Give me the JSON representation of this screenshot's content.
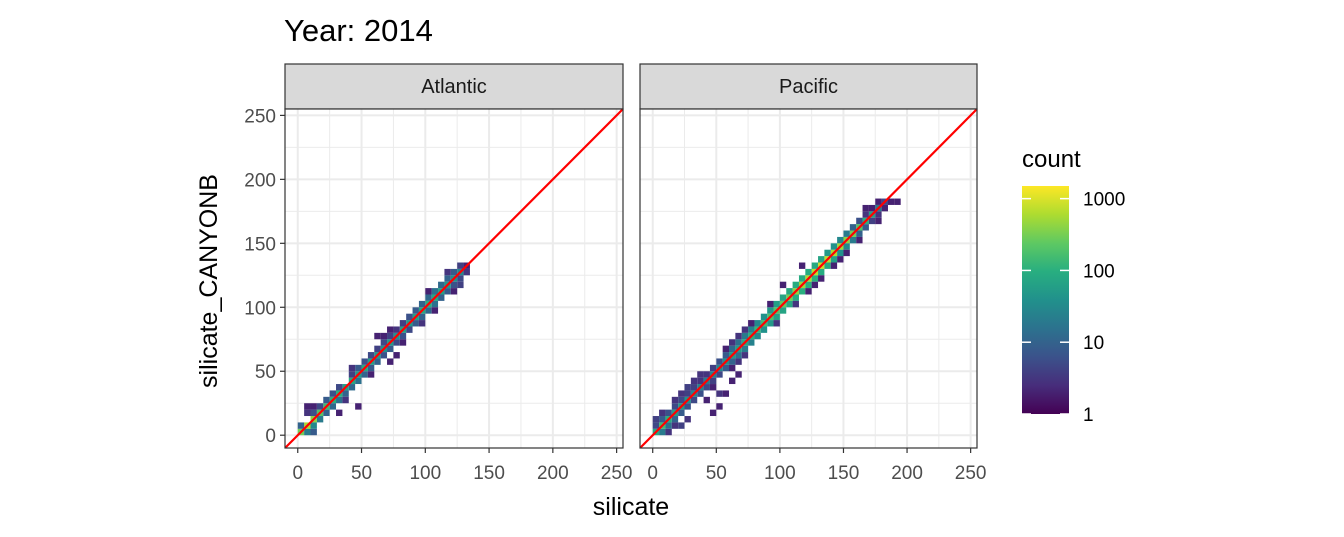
{
  "chart_data": {
    "type": "heatmap",
    "title": "Year: 2014",
    "xlabel": "silicate",
    "ylabel": "silicate_CANYONB",
    "xlim": [
      -10,
      255
    ],
    "ylim": [
      -10,
      255
    ],
    "x_ticks": [
      "0",
      "50",
      "100",
      "150",
      "200",
      "250"
    ],
    "y_ticks": [
      "0",
      "50",
      "100",
      "150",
      "200",
      "250"
    ],
    "tick_values": [
      0,
      50,
      100,
      150,
      200,
      250
    ],
    "grid": true,
    "bin_width": 5,
    "reference_line": {
      "type": "identity",
      "slope": 1,
      "intercept": 0,
      "color": "#ff0000"
    },
    "legend": {
      "title": "count",
      "position": "right",
      "scale": "log10",
      "labels": [
        "1000",
        "100",
        "10",
        "1"
      ],
      "values": [
        1000,
        100,
        10,
        1
      ],
      "max": 1500,
      "colors": [
        "#440154",
        "#472d7b",
        "#3b528b",
        "#2c728e",
        "#21918c",
        "#28ae80",
        "#5ec962",
        "#addc30",
        "#fde725"
      ]
    },
    "panels": [
      {
        "name": "Atlantic",
        "x_range": [
          0,
          130
        ],
        "bins": [
          [
            0,
            0,
            300
          ],
          [
            5,
            5,
            600
          ],
          [
            10,
            10,
            400
          ],
          [
            15,
            15,
            200
          ],
          [
            20,
            20,
            150
          ],
          [
            25,
            25,
            100
          ],
          [
            30,
            30,
            100
          ],
          [
            35,
            35,
            60
          ],
          [
            40,
            40,
            80
          ],
          [
            45,
            45,
            50
          ],
          [
            50,
            50,
            80
          ],
          [
            55,
            55,
            60
          ],
          [
            60,
            60,
            50
          ],
          [
            65,
            65,
            40
          ],
          [
            70,
            70,
            50
          ],
          [
            75,
            75,
            40
          ],
          [
            80,
            80,
            60
          ],
          [
            85,
            85,
            50
          ],
          [
            90,
            90,
            60
          ],
          [
            95,
            95,
            80
          ],
          [
            100,
            100,
            100
          ],
          [
            105,
            105,
            80
          ],
          [
            110,
            110,
            60
          ],
          [
            115,
            115,
            50
          ],
          [
            120,
            120,
            40
          ],
          [
            125,
            125,
            30
          ],
          [
            5,
            0,
            20
          ],
          [
            10,
            0,
            8
          ],
          [
            0,
            5,
            10
          ],
          [
            5,
            15,
            3
          ],
          [
            10,
            5,
            30
          ],
          [
            15,
            10,
            20
          ],
          [
            10,
            15,
            6
          ],
          [
            15,
            20,
            5
          ],
          [
            20,
            15,
            10
          ],
          [
            20,
            25,
            8
          ],
          [
            25,
            20,
            12
          ],
          [
            25,
            30,
            6
          ],
          [
            30,
            25,
            15
          ],
          [
            30,
            35,
            5
          ],
          [
            35,
            30,
            10
          ],
          [
            35,
            25,
            3
          ],
          [
            40,
            35,
            12
          ],
          [
            40,
            45,
            4
          ],
          [
            45,
            40,
            15
          ],
          [
            50,
            45,
            10
          ],
          [
            45,
            50,
            8
          ],
          [
            50,
            55,
            6
          ],
          [
            55,
            50,
            8
          ],
          [
            55,
            60,
            5
          ],
          [
            60,
            55,
            10
          ],
          [
            60,
            65,
            4
          ],
          [
            65,
            60,
            6
          ],
          [
            65,
            70,
            5
          ],
          [
            70,
            65,
            8
          ],
          [
            70,
            75,
            4
          ],
          [
            75,
            70,
            5
          ],
          [
            75,
            80,
            3
          ],
          [
            80,
            75,
            6
          ],
          [
            85,
            80,
            5
          ],
          [
            80,
            85,
            4
          ],
          [
            90,
            85,
            8
          ],
          [
            85,
            90,
            6
          ],
          [
            95,
            90,
            10
          ],
          [
            90,
            95,
            8
          ],
          [
            100,
            95,
            12
          ],
          [
            95,
            100,
            10
          ],
          [
            105,
            100,
            15
          ],
          [
            100,
            105,
            12
          ],
          [
            110,
            105,
            10
          ],
          [
            105,
            110,
            15
          ],
          [
            115,
            110,
            8
          ],
          [
            110,
            115,
            12
          ],
          [
            120,
            115,
            6
          ],
          [
            115,
            120,
            10
          ],
          [
            125,
            120,
            5
          ],
          [
            120,
            125,
            8
          ],
          [
            130,
            125,
            3
          ],
          [
            125,
            130,
            4
          ],
          [
            130,
            130,
            2
          ],
          [
            115,
            125,
            3
          ],
          [
            125,
            115,
            4
          ],
          [
            5,
            20,
            2
          ],
          [
            10,
            20,
            2
          ],
          [
            30,
            15,
            2
          ],
          [
            45,
            20,
            2
          ],
          [
            40,
            50,
            3
          ],
          [
            55,
            45,
            2
          ],
          [
            65,
            75,
            2
          ],
          [
            70,
            55,
            2
          ],
          [
            75,
            60,
            2
          ],
          [
            80,
            70,
            2
          ],
          [
            70,
            80,
            2
          ],
          [
            60,
            75,
            2
          ],
          [
            95,
            85,
            3
          ],
          [
            100,
            110,
            2
          ],
          [
            105,
            95,
            2
          ],
          [
            120,
            110,
            2
          ]
        ]
      },
      {
        "name": "Pacific",
        "x_range": [
          0,
          190
        ],
        "bins": [
          [
            0,
            0,
            80
          ],
          [
            5,
            5,
            150
          ],
          [
            10,
            10,
            100
          ],
          [
            15,
            15,
            60
          ],
          [
            20,
            20,
            50
          ],
          [
            25,
            25,
            40
          ],
          [
            30,
            30,
            30
          ],
          [
            35,
            35,
            25
          ],
          [
            40,
            40,
            20
          ],
          [
            45,
            45,
            25
          ],
          [
            50,
            50,
            30
          ],
          [
            55,
            55,
            40
          ],
          [
            60,
            60,
            50
          ],
          [
            65,
            65,
            60
          ],
          [
            70,
            70,
            80
          ],
          [
            75,
            75,
            100
          ],
          [
            80,
            80,
            120
          ],
          [
            85,
            85,
            150
          ],
          [
            90,
            90,
            180
          ],
          [
            95,
            95,
            200
          ],
          [
            100,
            100,
            250
          ],
          [
            105,
            105,
            300
          ],
          [
            110,
            110,
            400
          ],
          [
            115,
            115,
            500
          ],
          [
            120,
            120,
            600
          ],
          [
            125,
            125,
            700
          ],
          [
            130,
            130,
            800
          ],
          [
            135,
            135,
            700
          ],
          [
            140,
            140,
            600
          ],
          [
            145,
            145,
            500
          ],
          [
            150,
            150,
            400
          ],
          [
            155,
            155,
            300
          ],
          [
            160,
            160,
            200
          ],
          [
            165,
            165,
            100
          ],
          [
            170,
            170,
            60
          ],
          [
            175,
            175,
            20
          ],
          [
            180,
            180,
            5
          ],
          [
            5,
            0,
            20
          ],
          [
            0,
            5,
            5
          ],
          [
            10,
            5,
            15
          ],
          [
            5,
            10,
            8
          ],
          [
            15,
            10,
            10
          ],
          [
            10,
            15,
            6
          ],
          [
            20,
            15,
            8
          ],
          [
            15,
            20,
            5
          ],
          [
            25,
            20,
            6
          ],
          [
            20,
            25,
            5
          ],
          [
            30,
            25,
            5
          ],
          [
            25,
            30,
            4
          ],
          [
            35,
            30,
            6
          ],
          [
            30,
            35,
            4
          ],
          [
            40,
            35,
            5
          ],
          [
            35,
            40,
            3
          ],
          [
            45,
            40,
            4
          ],
          [
            40,
            45,
            3
          ],
          [
            50,
            45,
            5
          ],
          [
            45,
            50,
            4
          ],
          [
            55,
            50,
            8
          ],
          [
            50,
            55,
            6
          ],
          [
            60,
            55,
            10
          ],
          [
            55,
            60,
            8
          ],
          [
            65,
            60,
            15
          ],
          [
            60,
            65,
            12
          ],
          [
            70,
            65,
            20
          ],
          [
            65,
            70,
            15
          ],
          [
            75,
            70,
            25
          ],
          [
            70,
            75,
            20
          ],
          [
            80,
            75,
            30
          ],
          [
            75,
            80,
            25
          ],
          [
            85,
            80,
            40
          ],
          [
            80,
            85,
            30
          ],
          [
            90,
            85,
            50
          ],
          [
            85,
            90,
            40
          ],
          [
            95,
            90,
            60
          ],
          [
            90,
            95,
            50
          ],
          [
            100,
            95,
            70
          ],
          [
            95,
            100,
            60
          ],
          [
            105,
            100,
            80
          ],
          [
            100,
            105,
            70
          ],
          [
            110,
            105,
            90
          ],
          [
            105,
            110,
            80
          ],
          [
            115,
            110,
            100
          ],
          [
            110,
            115,
            90
          ],
          [
            120,
            115,
            100
          ],
          [
            115,
            120,
            90
          ],
          [
            125,
            120,
            100
          ],
          [
            120,
            125,
            90
          ],
          [
            130,
            125,
            90
          ],
          [
            125,
            130,
            80
          ],
          [
            135,
            130,
            80
          ],
          [
            130,
            135,
            70
          ],
          [
            140,
            135,
            60
          ],
          [
            135,
            140,
            50
          ],
          [
            145,
            140,
            40
          ],
          [
            140,
            145,
            40
          ],
          [
            150,
            145,
            30
          ],
          [
            145,
            150,
            30
          ],
          [
            155,
            150,
            20
          ],
          [
            150,
            155,
            20
          ],
          [
            160,
            155,
            10
          ],
          [
            155,
            160,
            10
          ],
          [
            165,
            160,
            8
          ],
          [
            160,
            165,
            6
          ],
          [
            170,
            165,
            4
          ],
          [
            165,
            170,
            3
          ],
          [
            175,
            170,
            3
          ],
          [
            170,
            175,
            2
          ],
          [
            0,
            10,
            4
          ],
          [
            5,
            15,
            3
          ],
          [
            15,
            5,
            3
          ],
          [
            10,
            0,
            3
          ],
          [
            20,
            5,
            4
          ],
          [
            25,
            10,
            3
          ],
          [
            15,
            25,
            3
          ],
          [
            20,
            30,
            3
          ],
          [
            25,
            35,
            4
          ],
          [
            30,
            40,
            3
          ],
          [
            35,
            45,
            3
          ],
          [
            45,
            35,
            2
          ],
          [
            40,
            25,
            2
          ],
          [
            50,
            30,
            3
          ],
          [
            55,
            30,
            2
          ],
          [
            50,
            20,
            2
          ],
          [
            45,
            15,
            2
          ],
          [
            60,
            40,
            2
          ],
          [
            65,
            45,
            2
          ],
          [
            60,
            50,
            2
          ],
          [
            65,
            55,
            3
          ],
          [
            70,
            60,
            3
          ],
          [
            55,
            65,
            2
          ],
          [
            60,
            70,
            3
          ],
          [
            65,
            75,
            3
          ],
          [
            70,
            80,
            3
          ],
          [
            75,
            85,
            2
          ],
          [
            95,
            85,
            3
          ],
          [
            90,
            100,
            2
          ],
          [
            110,
            100,
            3
          ],
          [
            100,
            115,
            2
          ],
          [
            120,
            110,
            2
          ],
          [
            125,
            115,
            2
          ],
          [
            115,
            130,
            2
          ],
          [
            130,
            120,
            2
          ],
          [
            140,
            130,
            2
          ],
          [
            145,
            135,
            2
          ],
          [
            150,
            140,
            2
          ],
          [
            160,
            150,
            2
          ],
          [
            165,
            175,
            2
          ],
          [
            175,
            165,
            2
          ],
          [
            185,
            180,
            2
          ],
          [
            180,
            175,
            2
          ],
          [
            175,
            180,
            2
          ],
          [
            190,
            180,
            2
          ]
        ]
      }
    ]
  }
}
